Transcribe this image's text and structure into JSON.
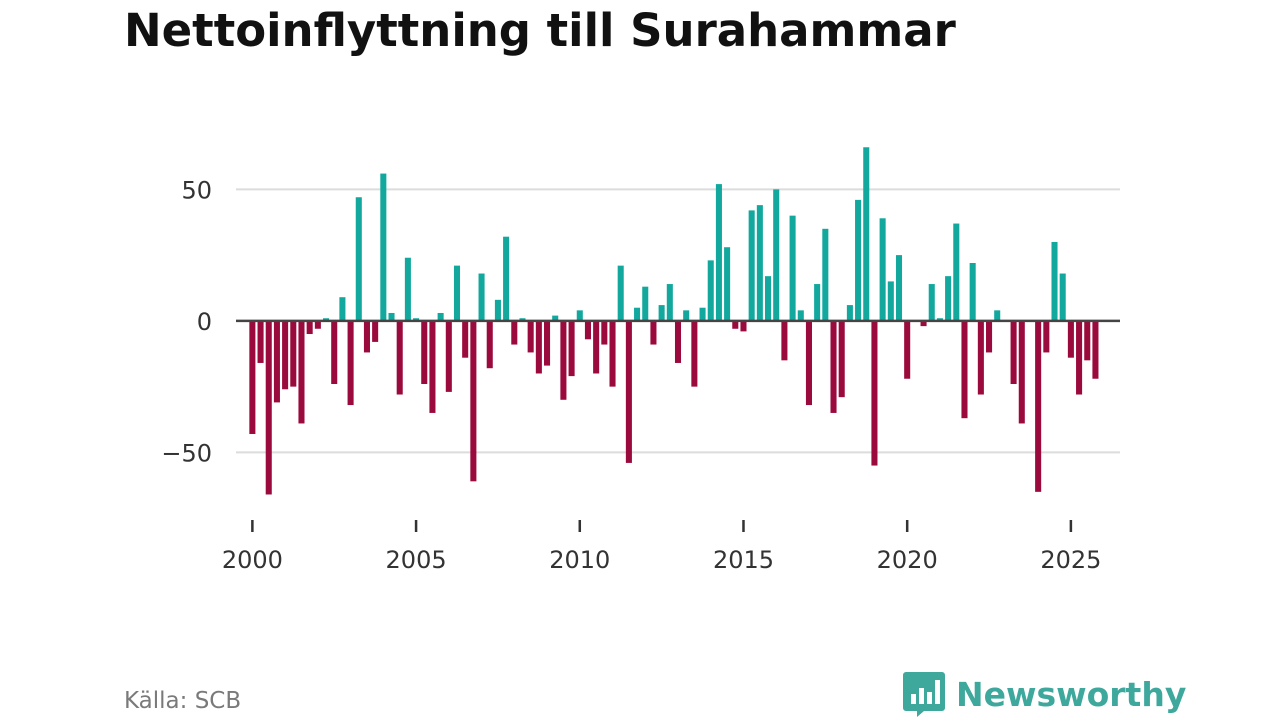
{
  "title": "Nettoinflyttning till Surahammar",
  "source": "Källa: SCB",
  "brand": "Newsworthy",
  "colors": {
    "positive": "#13A89E",
    "negative": "#9B0A3C",
    "grid": "#dcdcdc",
    "zero_line": "#444444",
    "brand": "#3ea89d"
  },
  "chart_data": {
    "type": "bar",
    "title": "Nettoinflyttning till Surahammar",
    "xlabel": "",
    "ylabel": "",
    "ylim": [
      -70,
      68
    ],
    "xlim": [
      1999.5,
      2026.5
    ],
    "y_ticks": [
      50,
      0,
      -50
    ],
    "y_tick_labels": [
      "50",
      "0",
      "−50"
    ],
    "x_ticks": [
      2000,
      2005,
      2010,
      2015,
      2020,
      2025
    ],
    "x_tick_labels": [
      "2000",
      "2005",
      "2010",
      "2015",
      "2020",
      "2025"
    ],
    "start_year": 2000,
    "periods_per_year": 4,
    "values": [
      -43,
      -16,
      -66,
      -31,
      -26,
      -25,
      -39,
      -5,
      -3,
      1,
      -24,
      9,
      -32,
      47,
      -12,
      -8,
      56,
      3,
      -28,
      24,
      1,
      -24,
      -35,
      3,
      -27,
      21,
      -14,
      -61,
      18,
      -18,
      8,
      32,
      -9,
      1,
      -12,
      -20,
      -17,
      2,
      -30,
      -21,
      4,
      -7,
      -20,
      -9,
      -25,
      21,
      -54,
      5,
      13,
      -9,
      6,
      14,
      -16,
      4,
      -25,
      5,
      23,
      52,
      28,
      -3,
      -4,
      42,
      44,
      17,
      50,
      -15,
      40,
      4,
      -32,
      14,
      35,
      -35,
      -29,
      6,
      46,
      66,
      -55,
      39,
      15,
      25,
      -22,
      0,
      -2,
      14,
      1,
      17,
      37,
      -37,
      22,
      -28,
      -12,
      4,
      0,
      -24,
      -39,
      0,
      -65,
      -12,
      30,
      18,
      -14,
      -28,
      -15,
      -22
    ]
  }
}
